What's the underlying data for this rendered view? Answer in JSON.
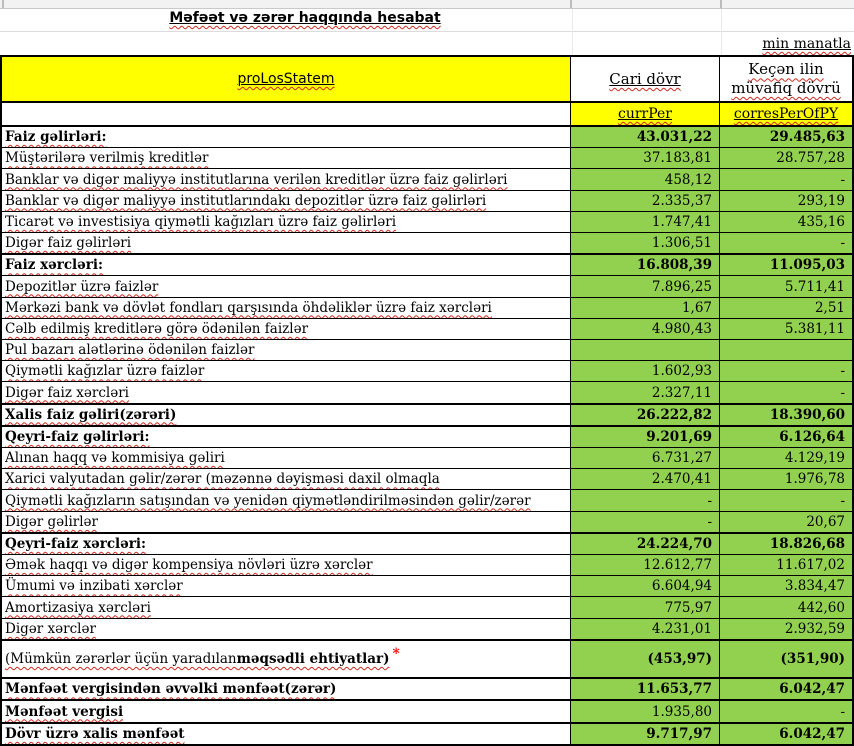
{
  "page": {
    "title": "Məfəət və zərər haqqında hesabat",
    "unit_note": "min manatla"
  },
  "colors": {
    "data_cell_green": "#92d050",
    "header_yellow": "#ffff00",
    "asterisk_red": "#ff0000",
    "spellcheck_squiggle_red": "#cf2b20"
  },
  "table": {
    "header": {
      "name_column": "proLosStatem",
      "current_period": "Cari dövr",
      "prior_period": "Keçən ilin müvafiq dövrü",
      "current_code": "currPer",
      "prior_code": "corresPerOfPY"
    },
    "rows": [
      {
        "label": "Faiz gəlirləri:",
        "curr": "43.031,22",
        "prev": "29.485,63",
        "label_bold": true,
        "value_bold": true,
        "thick": true
      },
      {
        "label": "Müştərilərə verilmiş kreditlər",
        "curr": "37.183,81",
        "prev": "28.757,28"
      },
      {
        "label": "Banklar və digər maliyyə institutlarına verilən kreditlər üzrə faiz gəlirləri",
        "curr": "458,12",
        "prev": "-"
      },
      {
        "label": "Banklar və digər maliyyə institutlarındakı depozitlər üzrə faiz gəlirləri",
        "curr": "2.335,37",
        "prev": "293,19"
      },
      {
        "label": "Ticarət və investisiya qiymətli kağızları üzrə faiz gəlirləri",
        "curr": "1.747,41",
        "prev": "435,16"
      },
      {
        "label": "Digər faiz gəlirləri",
        "curr": "1.306,51",
        "prev": "-"
      },
      {
        "label": "Faiz xərcləri:",
        "curr": "16.808,39",
        "prev": "11.095,03",
        "label_bold": true,
        "value_bold": true,
        "thick": true
      },
      {
        "label": "Depozitlər üzrə faizlər",
        "curr": "7.896,25",
        "prev": "5.711,41"
      },
      {
        "label": "Mərkəzi bank və dövlət fondları qarşısında öhdəliklər üzrə faiz xərcləri",
        "curr": "1,67",
        "prev": "2,51"
      },
      {
        "label": "Cəlb edilmiş kreditlərə görə ödənilən faizlər",
        "curr": "4.980,43",
        "prev": "5.381,11"
      },
      {
        "label": "Pul bazarı alətlərinə ödənilən faizlər",
        "curr": "",
        "prev": ""
      },
      {
        "label": "Qiymətli kağızlar üzrə faizlər",
        "curr": "1.602,93",
        "prev": "-"
      },
      {
        "label": "Digər faiz xərcləri",
        "curr": "2.327,11",
        "prev": "-"
      },
      {
        "label": "Xalis faiz gəliri(zərəri)",
        "curr": "26.222,82",
        "prev": "18.390,60",
        "label_bold": true,
        "value_bold": true,
        "thick": true
      },
      {
        "label": "Qeyri-faiz gəlirləri:",
        "curr": "9.201,69",
        "prev": "6.126,64",
        "label_bold": true,
        "value_bold": true,
        "thick": true
      },
      {
        "label": "Alınan haqq və kommisiya gəliri",
        "curr": "6.731,27",
        "prev": "4.129,19"
      },
      {
        "label": "Xarici valyutadan gəlir/zərər (məzənnə dəyişməsi daxil olmaqla",
        "curr": "2.470,41",
        "prev": "1.976,78"
      },
      {
        "label": "Qiymətli kağızların satışından və yenidən qiymətləndirilməsindən gəlir/zərər",
        "curr": "-",
        "prev": "-"
      },
      {
        "label": "Digər gəlirlər",
        "curr": "-",
        "prev": "20,67"
      },
      {
        "label": "Qeyri-faiz xərcləri:",
        "curr": "24.224,70",
        "prev": "18.826,68",
        "label_bold": true,
        "value_bold": true,
        "thick": true
      },
      {
        "label": "Əmək haqqı və digər kompensiya növləri üzrə xərclər",
        "curr": "12.612,77",
        "prev": "11.617,02"
      },
      {
        "label": "Ümumi və inzibati xərclər",
        "curr": "6.604,94",
        "prev": "3.834,47"
      },
      {
        "label": "Amortizasiya xərcləri",
        "curr": "775,97",
        "prev": "442,60"
      },
      {
        "label": "Digər xərclər",
        "curr": "4.231,01",
        "prev": "2.932,59"
      },
      {
        "label": "(Mümkün zərərlər üçün yaradılan ",
        "label_bold_part": "məqsədli ehtiyatlar)",
        "asterisk": "*",
        "curr": "(453,97)",
        "prev": "(351,90)",
        "value_bold": true,
        "thick": true,
        "tall": true
      },
      {
        "label": "Mənfəət vergisindən əvvəlki mənfəət(zərər)",
        "curr": "11.653,77",
        "prev": "6.042,47",
        "label_bold": true,
        "value_bold": true,
        "thick": true
      },
      {
        "label": "Mənfəət vergisi",
        "curr": "1.935,80",
        "prev": "-",
        "label_bold": true,
        "thick": true
      },
      {
        "label": "Dövr üzrə xalis mənfəət",
        "curr": "9.717,97",
        "prev": "6.042,47",
        "label_bold": true,
        "value_bold": true,
        "thick": true
      }
    ]
  }
}
